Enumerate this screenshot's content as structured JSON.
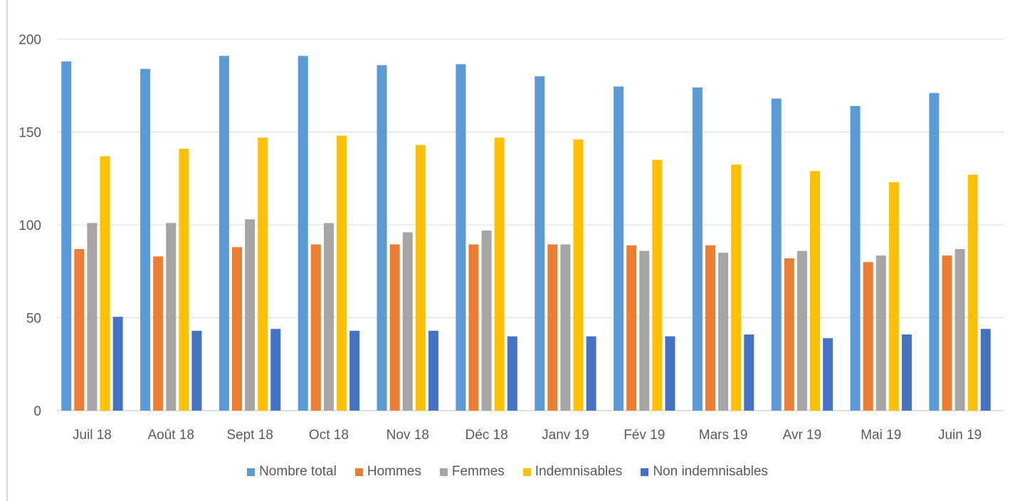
{
  "chart_data": {
    "type": "bar",
    "categories": [
      "Juil 18",
      "Août 18",
      "Sept 18",
      "Oct 18",
      "Nov 18",
      "Déc 18",
      "Janv 19",
      "Fév 19",
      "Mars 19",
      "Avr 19",
      "Mai 19",
      "Juin 19"
    ],
    "series": [
      {
        "name": "Nombre total",
        "color": "#5b9bd5",
        "values": [
          188,
          184,
          191,
          191,
          186,
          186.5,
          180,
          174.5,
          174,
          168,
          164,
          171
        ]
      },
      {
        "name": "Hommes",
        "color": "#ed7d31",
        "values": [
          87,
          83,
          88,
          89.5,
          89.5,
          89.5,
          89.5,
          89,
          89,
          82,
          80,
          83.5
        ]
      },
      {
        "name": "Femmes",
        "color": "#a5a5a5",
        "values": [
          101,
          101,
          103,
          101,
          96,
          97,
          89.5,
          86,
          85,
          86,
          83.5,
          87
        ]
      },
      {
        "name": "Indemnisables",
        "color": "#ffc000",
        "values": [
          137,
          141,
          147,
          148,
          143,
          147,
          146,
          135,
          132.5,
          129,
          123,
          127
        ]
      },
      {
        "name": "Non indemnisables",
        "color": "#4472c4",
        "values": [
          50.5,
          43,
          44,
          43,
          43,
          40,
          40,
          40,
          41,
          39,
          41,
          44
        ]
      }
    ],
    "yticks": [
      "0",
      "50",
      "100",
      "150",
      "200"
    ],
    "ylim": [
      0,
      200
    ],
    "grid": true,
    "legend_position": "bottom"
  }
}
